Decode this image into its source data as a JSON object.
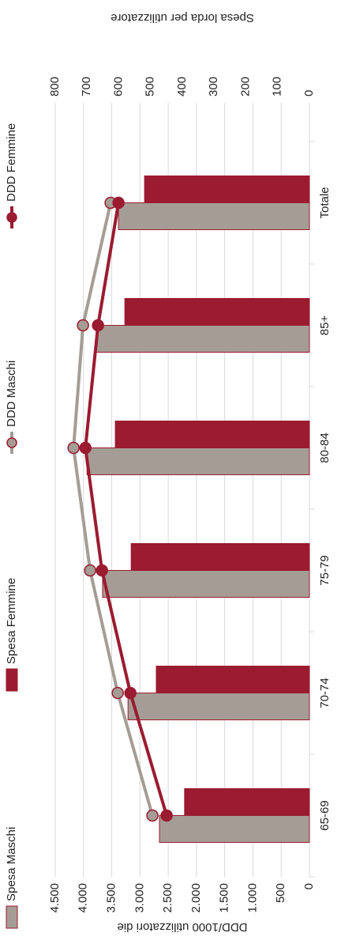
{
  "chart_data": {
    "type": "bar",
    "categories": [
      "65-69",
      "70-74",
      "75-79",
      "80-84",
      "85+",
      "Totale"
    ],
    "y_label": "DDD/1000 utilizzatori die",
    "y2_label": "Spesa lorda per utilizzatore",
    "ylim": [
      0,
      4500
    ],
    "yticks": [
      0,
      500,
      {
        "value": 1000,
        "label": "1.000"
      },
      {
        "value": 1500,
        "label": "1.500"
      },
      {
        "value": 2000,
        "label": "2.000"
      },
      {
        "value": 2500,
        "label": "2.500"
      },
      {
        "value": 3000,
        "label": "3.000"
      },
      {
        "value": 3500,
        "label": "3.500"
      },
      {
        "value": 4000,
        "label": "4.000"
      },
      {
        "value": 4500,
        "label": "4.500"
      }
    ],
    "y2lim": [
      0,
      800
    ],
    "y2ticks": [
      0,
      100,
      200,
      300,
      400,
      500,
      600,
      700,
      800
    ],
    "grid": true,
    "legend": "top",
    "series": [
      {
        "name": "Spesa Maschi",
        "type": "bar",
        "axis": "y2",
        "color": "#a59d95",
        "values": [
          472,
          571,
          651,
          700,
          671,
          601
        ]
      },
      {
        "name": "Spesa Femmine",
        "type": "bar",
        "axis": "y2",
        "color": "#9b1b30",
        "values": [
          393,
          482,
          561,
          611,
          581,
          519
        ]
      },
      {
        "name": "DDD Maschi",
        "type": "line",
        "color": "#a59d95",
        "values": [
          2780,
          3394,
          3883,
          4176,
          4009,
          3520
        ]
      },
      {
        "name": "DDD Femmine",
        "type": "line",
        "color": "#9b1b30",
        "values": [
          2528,
          3170,
          3673,
          3966,
          3743,
          3380
        ]
      }
    ]
  }
}
